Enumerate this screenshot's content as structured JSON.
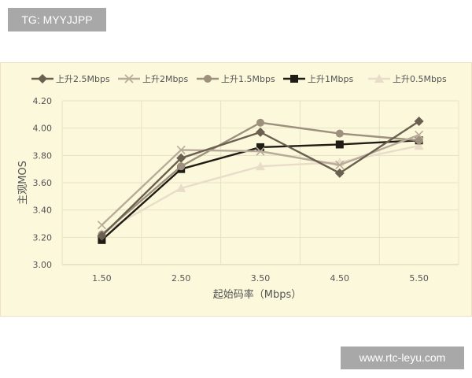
{
  "watermark_top": "TG: MYYJJPP",
  "watermark_bottom": "www.rtc-leyu.com",
  "chart_data": {
    "type": "line",
    "title": "",
    "xlabel": "起始码率（Mbps）",
    "ylabel": "主观MOS",
    "categories": [
      "1.50",
      "2.50",
      "3.50",
      "4.50",
      "5.50"
    ],
    "ylim": [
      3.0,
      4.2
    ],
    "yticks": [
      "3.00",
      "3.20",
      "3.40",
      "3.60",
      "3.80",
      "4.00",
      "4.20"
    ],
    "grid": true,
    "legend_position": "top",
    "background": "#fcf8dc",
    "series": [
      {
        "name": "上升2.5Mbps",
        "marker": "diamond",
        "color": "#6b5f4f",
        "values": [
          3.21,
          3.78,
          3.97,
          3.67,
          4.05
        ]
      },
      {
        "name": "上升2Mbps",
        "marker": "x",
        "color": "#b8ab9a",
        "values": [
          3.29,
          3.84,
          3.83,
          3.73,
          3.95
        ]
      },
      {
        "name": "上升1.5Mbps",
        "marker": "circle",
        "color": "#9d907d",
        "values": [
          3.22,
          3.72,
          4.04,
          3.96,
          3.91
        ]
      },
      {
        "name": "上升1Mbps",
        "marker": "square",
        "color": "#1f1c15",
        "values": [
          3.18,
          3.7,
          3.86,
          3.88,
          3.91
        ]
      },
      {
        "name": "上升0.5Mbps",
        "marker": "triangle",
        "color": "#e9dcc9",
        "values": [
          3.23,
          3.56,
          3.72,
          3.75,
          3.87
        ]
      }
    ]
  }
}
